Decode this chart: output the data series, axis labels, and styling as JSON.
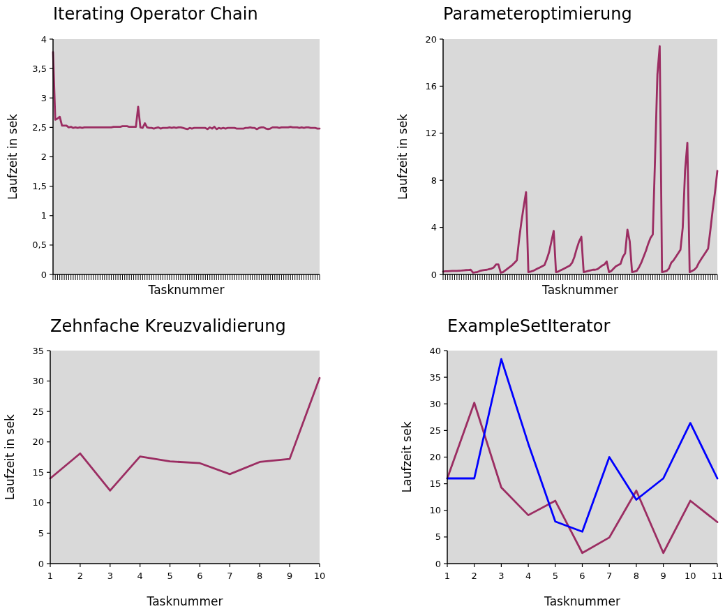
{
  "chart_data": [
    {
      "type": "line",
      "title": "Iterating Operator Chain",
      "xlabel": "Tasknummer",
      "ylabel": "Laufzeit in sek",
      "categories": [
        null,
        null,
        null,
        null,
        null,
        null,
        null,
        null,
        null,
        null,
        null,
        null,
        null,
        null,
        null,
        null,
        null,
        null,
        null,
        null,
        null,
        null,
        null,
        null,
        null,
        null,
        null,
        null,
        null,
        null,
        null,
        null,
        null,
        null,
        null,
        null,
        null,
        null,
        null,
        null,
        null,
        null,
        null,
        null,
        null,
        null,
        null,
        null,
        null,
        null,
        null,
        null,
        null,
        null,
        null,
        null,
        null,
        null,
        null,
        null,
        null,
        null,
        null,
        null,
        null,
        null,
        null,
        null,
        null,
        null,
        null,
        null,
        null,
        null,
        null,
        null,
        null,
        null,
        null,
        null,
        null,
        null,
        null,
        null,
        null,
        null,
        null,
        null,
        null,
        null,
        null,
        null,
        null,
        null,
        null,
        null,
        null,
        null,
        null,
        null,
        null,
        null,
        null,
        null,
        null,
        null,
        null,
        null,
        null,
        null,
        null,
        null,
        null,
        null,
        null,
        null,
        null,
        null,
        null,
        null
      ],
      "series": [
        {
          "color": "#9b2d62",
          "values": [
            3.78,
            2.63,
            2.65,
            2.68,
            2.53,
            2.53,
            2.53,
            2.5,
            2.51,
            2.49,
            2.5,
            2.49,
            2.5,
            2.49,
            2.5,
            2.5,
            2.5,
            2.5,
            2.5,
            2.5,
            2.5,
            2.5,
            2.5,
            2.5,
            2.5,
            2.5,
            2.5,
            2.51,
            2.51,
            2.51,
            2.51,
            2.52,
            2.52,
            2.52,
            2.51,
            2.51,
            2.51,
            2.51,
            2.85,
            2.5,
            2.49,
            2.57,
            2.5,
            2.49,
            2.49,
            2.48,
            2.49,
            2.5,
            2.48,
            2.49,
            2.49,
            2.49,
            2.5,
            2.49,
            2.5,
            2.49,
            2.5,
            2.5,
            2.49,
            2.48,
            2.47,
            2.49,
            2.48,
            2.49,
            2.49,
            2.49,
            2.49,
            2.49,
            2.49,
            2.47,
            2.5,
            2.48,
            2.51,
            2.47,
            2.49,
            2.48,
            2.49,
            2.48,
            2.49,
            2.49,
            2.49,
            2.49,
            2.48,
            2.48,
            2.48,
            2.48,
            2.49,
            2.49,
            2.5,
            2.49,
            2.49,
            2.47,
            2.49,
            2.5,
            2.5,
            2.48,
            2.47,
            2.48,
            2.5,
            2.5,
            2.5,
            2.49,
            2.5,
            2.5,
            2.5,
            2.5,
            2.51,
            2.5,
            2.5,
            2.5,
            2.49,
            2.5,
            2.49,
            2.5,
            2.5,
            2.49,
            2.49,
            2.49,
            2.48,
            2.48
          ]
        }
      ],
      "ylim": [
        0,
        4
      ],
      "yticks": [
        0,
        {
          "value": 0.5,
          "label": "0,5"
        },
        1,
        {
          "value": 1.5,
          "label": "1,5"
        },
        2,
        {
          "value": 2.5,
          "label": "2,5"
        },
        3,
        {
          "value": 3.5,
          "label": "3,5"
        },
        4
      ],
      "grid": false
    },
    {
      "type": "line",
      "title": "Parameteroptimierung",
      "xlabel": "Tasknummer",
      "ylabel": "Laufzeit in sek",
      "categories": [
        null,
        null,
        null,
        null,
        null,
        null,
        null,
        null,
        null,
        null,
        null,
        null,
        null,
        null,
        null,
        null,
        null,
        null,
        null,
        null,
        null,
        null,
        null,
        null,
        null,
        null,
        null,
        null,
        null,
        null,
        null,
        null,
        null,
        null,
        null,
        null,
        null,
        null,
        null,
        null,
        null,
        null,
        null,
        null,
        null,
        null,
        null,
        null,
        null,
        null,
        null,
        null,
        null,
        null,
        null,
        null,
        null,
        null,
        null,
        null,
        null,
        null,
        null,
        null,
        null,
        null,
        null,
        null,
        null,
        null,
        null,
        null,
        null,
        null,
        null,
        null,
        null,
        null,
        null,
        null,
        null,
        null,
        null,
        null,
        null,
        null,
        null,
        null,
        null,
        null,
        null,
        null,
        null,
        null,
        null,
        null,
        null,
        null,
        null,
        null,
        null,
        null,
        null,
        null,
        null,
        null,
        null,
        null,
        null,
        null,
        null,
        null,
        null,
        null,
        null,
        null,
        null,
        null,
        null,
        null
      ],
      "series": [
        {
          "color": "#9b2d62",
          "values": [
            0.25,
            0.27,
            0.28,
            0.29,
            0.3,
            0.3,
            0.31,
            0.32,
            0.33,
            0.35,
            0.37,
            0.38,
            0.4,
            0.15,
            0.18,
            0.22,
            0.3,
            0.35,
            0.38,
            0.4,
            0.45,
            0.5,
            0.6,
            0.85,
            0.85,
            0.15,
            0.2,
            0.35,
            0.5,
            0.65,
            0.8,
            1.0,
            1.2,
            3.0,
            4.5,
            5.8,
            7.0,
            0.2,
            0.25,
            0.3,
            0.4,
            0.5,
            0.6,
            0.7,
            0.8,
            1.3,
            1.9,
            2.8,
            3.7,
            0.2,
            0.25,
            0.35,
            0.45,
            0.55,
            0.65,
            0.75,
            1.0,
            1.5,
            2.2,
            2.8,
            3.2,
            0.2,
            0.25,
            0.3,
            0.35,
            0.4,
            0.4,
            0.45,
            0.6,
            0.75,
            0.85,
            1.1,
            0.2,
            0.3,
            0.5,
            0.7,
            0.8,
            0.9,
            1.5,
            1.8,
            3.8,
            2.8,
            0.2,
            0.25,
            0.3,
            0.6,
            1.0,
            1.5,
            2.0,
            2.6,
            3.1,
            3.4,
            10,
            17,
            19.4,
            0.2,
            0.25,
            0.3,
            0.5,
            1.0,
            1.2,
            1.5,
            1.8,
            2.1,
            4.0,
            8.8,
            11.2,
            0.2,
            0.3,
            0.4,
            0.6,
            1.0,
            1.3,
            1.6,
            1.9,
            2.2,
            3.8,
            5.5,
            7.0,
            8.8
          ]
        }
      ],
      "ylim": [
        0,
        20
      ],
      "yticks": [
        0,
        4,
        8,
        12,
        16,
        20
      ],
      "grid": false
    },
    {
      "type": "line",
      "title": "Zehnfache Kreuzvalidierung",
      "xlabel": "Tasknummer",
      "ylabel": "Laufzeit in sek",
      "x": [
        1,
        2,
        3,
        4,
        5,
        6,
        7,
        8,
        9,
        10
      ],
      "series": [
        {
          "color": "#9b2d62",
          "values": [
            14,
            18.1,
            12,
            17.6,
            16.8,
            16.5,
            14.7,
            16.7,
            17.2,
            30.5
          ]
        }
      ],
      "xlim": [
        1,
        10
      ],
      "xticks": [
        1,
        2,
        3,
        4,
        5,
        6,
        7,
        8,
        9,
        10
      ],
      "ylim": [
        0,
        35
      ],
      "yticks": [
        0,
        5,
        10,
        15,
        20,
        25,
        30,
        35
      ],
      "grid": false
    },
    {
      "type": "line",
      "title": "ExampleSetIterator",
      "xlabel": "Tasknummer",
      "ylabel": "Laufzeit sek",
      "x": [
        1,
        2,
        3,
        4,
        5,
        6,
        7,
        8,
        9,
        10,
        11
      ],
      "series": [
        {
          "color": "#9b2d62",
          "values": [
            16,
            30.2,
            14.3,
            9.1,
            11.8,
            2,
            4.9,
            13.7,
            2,
            11.8,
            7.8
          ]
        },
        {
          "color": "#0000ff",
          "values": [
            16,
            16,
            38.4,
            22.5,
            7.9,
            6,
            20,
            12,
            16,
            26.4,
            16
          ]
        }
      ],
      "xlim": [
        1,
        11
      ],
      "xticks": [
        1,
        2,
        3,
        4,
        5,
        6,
        7,
        8,
        9,
        10,
        11
      ],
      "ylim": [
        0,
        40
      ],
      "yticks": [
        0,
        5,
        10,
        15,
        20,
        25,
        30,
        35,
        40
      ],
      "grid": false
    }
  ]
}
